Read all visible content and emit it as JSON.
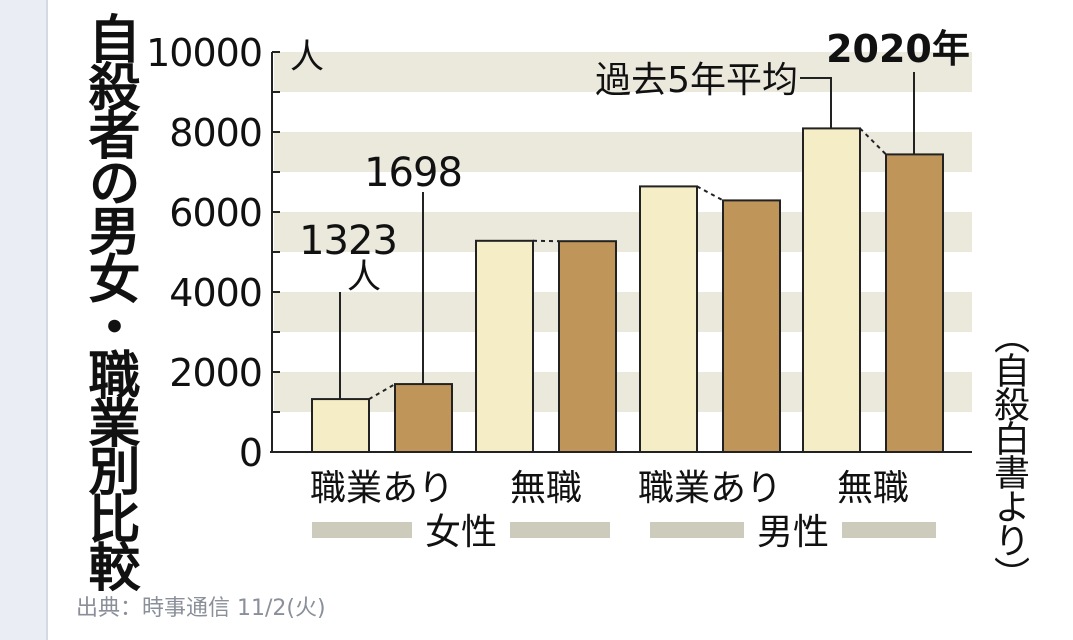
{
  "title": "自殺者の男女・職業別比較",
  "source_note": "（自殺白書より）",
  "footer": "出典：時事通信 11/2(火)",
  "colors": {
    "avg": "#f5edc6",
    "y2020": "#c0955a",
    "band": "#ebe9dc",
    "group_bar": "#cdccbc"
  },
  "chart_data": {
    "type": "bar",
    "title": "自殺者の男女・職業別比較",
    "y_unit": "人",
    "ylim": [
      0,
      10000
    ],
    "yticks": [
      "0",
      "2000",
      "4000",
      "6000",
      "8000",
      "10000"
    ],
    "categories": [
      "職業あり",
      "無職",
      "職業あり",
      "無職"
    ],
    "groups": [
      {
        "label": "女性",
        "categories": [
          "職業あり",
          "無職"
        ]
      },
      {
        "label": "男性",
        "categories": [
          "職業あり",
          "無職"
        ]
      }
    ],
    "series": [
      {
        "name": "過去5年平均",
        "values": [
          1323,
          5280,
          6640,
          8090
        ]
      },
      {
        "name": "2020年",
        "values": [
          1698,
          5270,
          6290,
          7440
        ]
      }
    ],
    "annotations": [
      "1323",
      "人",
      "1698"
    ]
  }
}
